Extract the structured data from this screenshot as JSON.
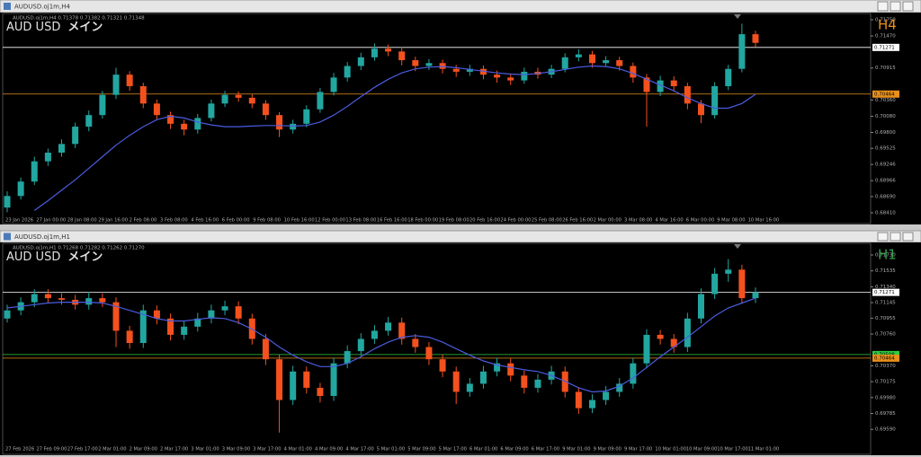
{
  "windows": [
    {
      "title": "AUDUSD.oj1m,H4",
      "info": "AUDUSD.oj1m,H4  0.71378 0.71382 0.71321 0.71348",
      "symbol": "AUD USD",
      "mode": "メイン",
      "timeframe": "H4",
      "timeframe_color": "#e8901a",
      "bull_color": "#22a6a0",
      "bear_color": "#f4511e",
      "ma_color": "#4a5ce0",
      "ylim": [
        0.68363,
        0.71843
      ],
      "yticks": [
        {
          "value": 0.7175,
          "label": "0.71750"
        },
        {
          "value": 0.7147,
          "label": "0.71470"
        },
        0.70915,
        {
          "value": 0.7036,
          "label": "0.70360"
        },
        {
          "value": 0.7008,
          "label": "0.70080"
        },
        {
          "value": 0.698,
          "label": "0.69800"
        },
        0.69525,
        0.69246,
        0.68966,
        {
          "value": 0.6869,
          "label": "0.68690"
        },
        {
          "value": 0.6841,
          "label": "0.68410"
        }
      ],
      "time_labels": [
        "23 Jan 2026",
        "27 Jan 00:00",
        "28 Jan 08:00",
        "29 Jan 16:00",
        "2 Feb 08:00",
        "3 Feb 08:00",
        "4 Feb 16:00",
        "6 Feb 00:00",
        "9 Feb 08:00",
        "10 Feb 16:00",
        "12 Feb 00:00",
        "13 Feb 08:00",
        "16 Feb 16:00",
        "18 Feb 00:00",
        "19 Feb 08:00",
        "20 Feb 16:00",
        "24 Feb 00:00",
        "25 Feb 08:00",
        "26 Feb 16:00",
        "2 Mar 00:00",
        "3 Mar 08:00",
        "4 Mar 16:00",
        "6 Mar 00:00",
        "9 Mar 08:00",
        "10 Mar 16:00"
      ],
      "levels": [
        {
          "value": 0.71271,
          "color": "#ffffff"
        },
        {
          "value": 0.70464,
          "color": "#e8901a"
        }
      ],
      "candles": [
        [
          0.685,
          0.6878,
          0.6842,
          0.687
        ],
        [
          0.687,
          0.6902,
          0.6864,
          0.6895
        ],
        [
          0.6895,
          0.6938,
          0.6889,
          0.693
        ],
        [
          0.693,
          0.6952,
          0.6922,
          0.6945
        ],
        [
          0.6945,
          0.6968,
          0.6938,
          0.696
        ],
        [
          0.696,
          0.6997,
          0.6953,
          0.699
        ],
        [
          0.699,
          0.7018,
          0.6982,
          0.701
        ],
        [
          0.701,
          0.7052,
          0.7004,
          0.7045
        ],
        [
          0.7045,
          0.7092,
          0.7038,
          0.708
        ],
        [
          0.708,
          0.7086,
          0.7052,
          0.706
        ],
        [
          0.706,
          0.7066,
          0.7022,
          0.703
        ],
        [
          0.703,
          0.7037,
          0.7002,
          0.701
        ],
        [
          0.701,
          0.7016,
          0.6986,
          0.6995
        ],
        [
          0.6995,
          0.7002,
          0.6975,
          0.6985
        ],
        [
          0.6985,
          0.7012,
          0.6978,
          0.7005
        ],
        [
          0.7005,
          0.7037,
          0.6999,
          0.703
        ],
        [
          0.703,
          0.7052,
          0.7024,
          0.7045
        ],
        [
          0.7045,
          0.7051,
          0.7033,
          0.704
        ],
        [
          0.704,
          0.7046,
          0.7022,
          0.703
        ],
        [
          0.703,
          0.7036,
          0.7002,
          0.701
        ],
        [
          0.701,
          0.7015,
          0.6972,
          0.6985
        ],
        [
          0.6985,
          0.7002,
          0.6978,
          0.6995
        ],
        [
          0.6995,
          0.7027,
          0.6989,
          0.702
        ],
        [
          0.702,
          0.7057,
          0.7014,
          0.705
        ],
        [
          0.705,
          0.7083,
          0.7044,
          0.7075
        ],
        [
          0.7075,
          0.7102,
          0.7068,
          0.7095
        ],
        [
          0.7095,
          0.7118,
          0.7088,
          0.711
        ],
        [
          0.711,
          0.7134,
          0.7104,
          0.7125
        ],
        [
          0.7125,
          0.7132,
          0.7112,
          0.712
        ],
        [
          0.712,
          0.7128,
          0.7096,
          0.7105
        ],
        [
          0.7105,
          0.7111,
          0.7086,
          0.7095
        ],
        [
          0.7095,
          0.7107,
          0.7088,
          0.71
        ],
        [
          0.71,
          0.7106,
          0.7082,
          0.709
        ],
        [
          0.709,
          0.7097,
          0.7076,
          0.7085
        ],
        [
          0.7085,
          0.7097,
          0.7078,
          0.709
        ],
        [
          0.709,
          0.7096,
          0.7072,
          0.708
        ],
        [
          0.708,
          0.7087,
          0.7066,
          0.7075
        ],
        [
          0.7075,
          0.7082,
          0.7062,
          0.707
        ],
        [
          0.707,
          0.7092,
          0.7064,
          0.7085
        ],
        [
          0.7085,
          0.7092,
          0.7073,
          0.708
        ],
        [
          0.708,
          0.7097,
          0.7074,
          0.709
        ],
        [
          0.709,
          0.7117,
          0.7084,
          0.711
        ],
        [
          0.711,
          0.7124,
          0.7103,
          0.7115
        ],
        [
          0.7115,
          0.7121,
          0.7092,
          0.71
        ],
        [
          0.71,
          0.7112,
          0.7094,
          0.7105
        ],
        [
          0.7105,
          0.7111,
          0.7087,
          0.7095
        ],
        [
          0.7095,
          0.7101,
          0.7066,
          0.7075
        ],
        [
          0.7075,
          0.7081,
          0.699,
          0.705
        ],
        [
          0.705,
          0.7078,
          0.7043,
          0.707
        ],
        [
          0.707,
          0.7077,
          0.7051,
          0.706
        ],
        [
          0.706,
          0.7066,
          0.702,
          0.703
        ],
        [
          0.703,
          0.7036,
          0.6996,
          0.701
        ],
        [
          0.701,
          0.7067,
          0.7004,
          0.706
        ],
        [
          0.706,
          0.7097,
          0.7053,
          0.709
        ],
        [
          0.709,
          0.7168,
          0.7084,
          0.715
        ],
        [
          0.715,
          0.7156,
          0.7128,
          0.7135
        ]
      ],
      "ma": [
        null,
        null,
        0.6845,
        0.6862,
        0.688,
        0.6898,
        0.6918,
        0.6938,
        0.6958,
        0.6975,
        0.699,
        0.7002,
        0.7008,
        0.7005,
        0.6998,
        0.6993,
        0.699,
        0.699,
        0.6991,
        0.6992,
        0.6992,
        0.6991,
        0.6992,
        0.6998,
        0.701,
        0.7025,
        0.7042,
        0.7058,
        0.7072,
        0.7083,
        0.709,
        0.7093,
        0.7094,
        0.7092,
        0.7089,
        0.7086,
        0.7083,
        0.7081,
        0.708,
        0.7082,
        0.7085,
        0.7089,
        0.7093,
        0.7095,
        0.7094,
        0.709,
        0.7082,
        0.7072,
        0.7062,
        0.7052,
        0.704,
        0.703,
        0.7022,
        0.7022,
        0.703,
        0.7046
      ]
    },
    {
      "title": "AUDUSD.oj1m,H1",
      "info": "AUDUSD.oj1m,H1  0.71268 0.71282 0.71262 0.71270",
      "symbol": "AUD USD",
      "mode": "メイン",
      "timeframe": "H1",
      "timeframe_color": "#2e9e4a",
      "bull_color": "#22a6a0",
      "bear_color": "#f4511e",
      "ma_color": "#4a5ce0",
      "ylim": [
        0.6946,
        0.71862
      ],
      "yticks": [
        {
          "value": 0.7173,
          "label": "0.71730"
        },
        0.71535,
        {
          "value": 0.7134,
          "label": "0.71340"
        },
        0.71145,
        0.70955,
        {
          "value": 0.7076,
          "label": "0.70760"
        },
        {
          "value": 0.7037,
          "label": "0.70370"
        },
        0.70175,
        {
          "value": 0.6998,
          "label": "0.69980"
        },
        0.69785,
        {
          "value": 0.6959,
          "label": "0.69590"
        }
      ],
      "time_labels": [
        "27 Feb 2026",
        "27 Feb 09:00",
        "27 Feb 17:00",
        "2 Mar 01:00",
        "2 Mar 09:00",
        "2 Mar 17:00",
        "3 Mar 01:00",
        "3 Mar 09:00",
        "3 Mar 17:00",
        "4 Mar 01:00",
        "4 Mar 09:00",
        "4 Mar 17:00",
        "5 Mar 01:00",
        "5 Mar 09:00",
        "5 Mar 17:00",
        "6 Mar 01:00",
        "6 Mar 09:00",
        "6 Mar 17:00",
        "9 Mar 01:00",
        "9 Mar 09:00",
        "9 Mar 17:00",
        "10 Mar 01:00",
        "10 Mar 09:00",
        "10 Mar 17:00",
        "11 Mar 01:00"
      ],
      "levels": [
        {
          "value": 0.71271,
          "color": "#ffffff"
        },
        {
          "value": 0.70508,
          "color": "#2ecc40"
        },
        {
          "value": 0.70464,
          "color": "#e8901a"
        }
      ],
      "candles": [
        [
          0.7095,
          0.7112,
          0.709,
          0.7105
        ],
        [
          0.7105,
          0.7121,
          0.7099,
          0.7115
        ],
        [
          0.7115,
          0.7131,
          0.7109,
          0.7125
        ],
        [
          0.7125,
          0.7131,
          0.7114,
          0.712
        ],
        [
          0.712,
          0.7126,
          0.7112,
          0.7118
        ],
        [
          0.7118,
          0.7124,
          0.7106,
          0.7112
        ],
        [
          0.7112,
          0.7128,
          0.7106,
          0.712
        ],
        [
          0.712,
          0.7126,
          0.7109,
          0.7115
        ],
        [
          0.7115,
          0.7121,
          0.706,
          0.708
        ],
        [
          0.708,
          0.7086,
          0.7058,
          0.7065
        ],
        [
          0.7065,
          0.7112,
          0.7059,
          0.7105
        ],
        [
          0.7105,
          0.7111,
          0.7088,
          0.7095
        ],
        [
          0.7095,
          0.7101,
          0.7068,
          0.7075
        ],
        [
          0.7075,
          0.7092,
          0.7069,
          0.7085
        ],
        [
          0.7085,
          0.7102,
          0.7079,
          0.7095
        ],
        [
          0.7095,
          0.7112,
          0.7089,
          0.7105
        ],
        [
          0.7105,
          0.7117,
          0.7099,
          0.711
        ],
        [
          0.711,
          0.7116,
          0.7088,
          0.7095
        ],
        [
          0.7095,
          0.7101,
          0.7063,
          0.707
        ],
        [
          0.707,
          0.7076,
          0.7038,
          0.7045
        ],
        [
          0.7045,
          0.7051,
          0.6955,
          0.6995
        ],
        [
          0.6995,
          0.7037,
          0.6989,
          0.703
        ],
        [
          0.703,
          0.7036,
          0.7003,
          0.701
        ],
        [
          0.701,
          0.7016,
          0.6992,
          0.7
        ],
        [
          0.7,
          0.7047,
          0.6994,
          0.704
        ],
        [
          0.704,
          0.7062,
          0.7034,
          0.7055
        ],
        [
          0.7055,
          0.7077,
          0.7049,
          0.707
        ],
        [
          0.707,
          0.7087,
          0.7064,
          0.708
        ],
        [
          0.708,
          0.7097,
          0.7074,
          0.709
        ],
        [
          0.709,
          0.7096,
          0.7063,
          0.707
        ],
        [
          0.707,
          0.7076,
          0.7053,
          0.706
        ],
        [
          0.706,
          0.7066,
          0.7038,
          0.7045
        ],
        [
          0.7045,
          0.7051,
          0.7023,
          0.703
        ],
        [
          0.703,
          0.7036,
          0.699,
          0.7005
        ],
        [
          0.7005,
          0.7022,
          0.6999,
          0.7015
        ],
        [
          0.7015,
          0.7037,
          0.7009,
          0.703
        ],
        [
          0.703,
          0.7047,
          0.7024,
          0.704
        ],
        [
          0.704,
          0.7046,
          0.7018,
          0.7025
        ],
        [
          0.7025,
          0.7031,
          0.7003,
          0.701
        ],
        [
          0.701,
          0.7027,
          0.7004,
          0.702
        ],
        [
          0.702,
          0.7037,
          0.7014,
          0.703
        ],
        [
          0.703,
          0.7036,
          0.6998,
          0.7005
        ],
        [
          0.7005,
          0.7011,
          0.6978,
          0.6985
        ],
        [
          0.6985,
          0.7002,
          0.6979,
          0.6995
        ],
        [
          0.6995,
          0.7012,
          0.6989,
          0.7005
        ],
        [
          0.7005,
          0.7022,
          0.6999,
          0.7015
        ],
        [
          0.7015,
          0.7047,
          0.7009,
          0.704
        ],
        [
          0.704,
          0.7082,
          0.7034,
          0.7075
        ],
        [
          0.7075,
          0.7081,
          0.7063,
          0.707
        ],
        [
          0.707,
          0.7076,
          0.7053,
          0.706
        ],
        [
          0.706,
          0.7102,
          0.7054,
          0.7095
        ],
        [
          0.7095,
          0.7132,
          0.7089,
          0.7125
        ],
        [
          0.7125,
          0.7157,
          0.7119,
          0.715
        ],
        [
          0.715,
          0.7168,
          0.714,
          0.7155
        ],
        [
          0.7155,
          0.7161,
          0.7113,
          0.712
        ],
        [
          0.712,
          0.7133,
          0.7114,
          0.7127
        ]
      ],
      "ma": [
        0.7108,
        0.711,
        0.7112,
        0.7114,
        0.7115,
        0.7115,
        0.7115,
        0.7114,
        0.711,
        0.7105,
        0.71,
        0.7095,
        0.7092,
        0.7092,
        0.7094,
        0.7096,
        0.7095,
        0.709,
        0.7082,
        0.7072,
        0.706,
        0.705,
        0.7042,
        0.7036,
        0.7036,
        0.704,
        0.7048,
        0.7058,
        0.7066,
        0.7072,
        0.7074,
        0.7072,
        0.7066,
        0.7058,
        0.705,
        0.7043,
        0.7038,
        0.7035,
        0.7032,
        0.703,
        0.7025,
        0.7018,
        0.701,
        0.7005,
        0.7006,
        0.7012,
        0.7022,
        0.7035,
        0.7048,
        0.706,
        0.7072,
        0.7085,
        0.7098,
        0.7108,
        0.7114,
        0.712
      ]
    }
  ]
}
